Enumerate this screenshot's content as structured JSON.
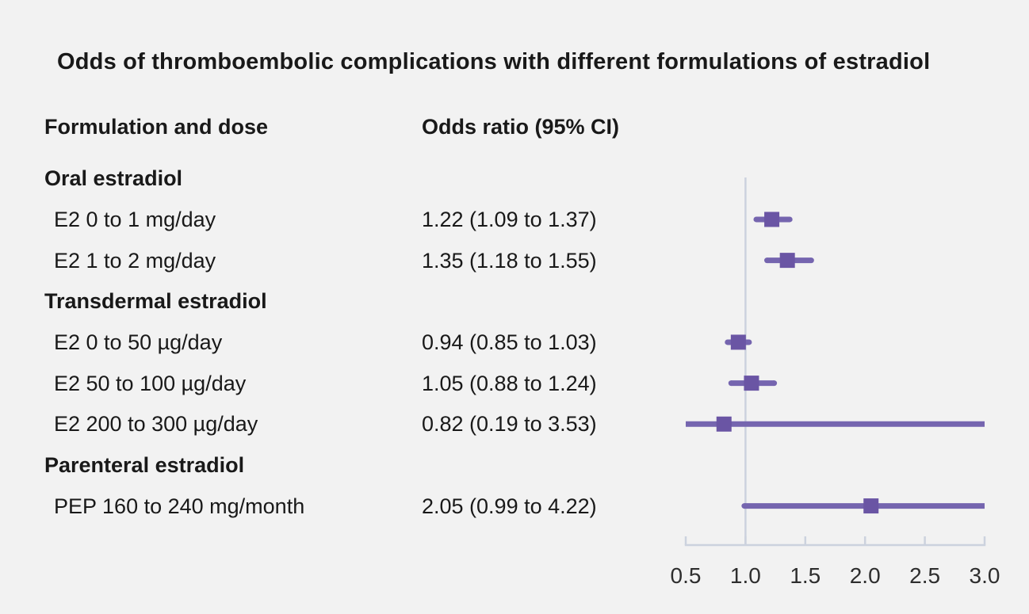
{
  "title": "Odds of thromboembolic complications with different formulations of estradiol",
  "columns": {
    "formulation": "Formulation and dose",
    "odds": "Odds ratio (95% CI)"
  },
  "colors": {
    "background": "#f2f2f2",
    "text": "#191919",
    "axis": "#ccd2de",
    "axis_label": "#2e2e2e",
    "ci_line": "#7565af",
    "marker": "#6a55a4"
  },
  "chart_data": {
    "type": "forest",
    "title": "Odds of thromboembolic complications with different formulations of estradiol",
    "xlim": [
      0.5,
      3.0
    ],
    "reference_line": 1.0,
    "grid": "off",
    "ticks": [
      {
        "value": 0.5,
        "label": "0.5"
      },
      {
        "value": 1.0,
        "label": "1.0"
      },
      {
        "value": 1.5,
        "label": "1.5"
      },
      {
        "value": 2.0,
        "label": "2.0"
      },
      {
        "value": 2.5,
        "label": "2.5"
      },
      {
        "value": 3.0,
        "label": "3.0"
      }
    ],
    "rows": [
      {
        "kind": "group",
        "label": "Oral estradiol"
      },
      {
        "kind": "item",
        "label": "E2 0 to 1 mg/day",
        "display": "1.22 (1.09 to 1.37)",
        "or": 1.22,
        "low": 1.09,
        "high": 1.37
      },
      {
        "kind": "item",
        "label": "E2 1 to 2 mg/day",
        "display": "1.35 (1.18 to 1.55)",
        "or": 1.35,
        "low": 1.18,
        "high": 1.55
      },
      {
        "kind": "group",
        "label": "Transdermal estradiol"
      },
      {
        "kind": "item",
        "label": "E2 0 to 50 µg/day",
        "display": "0.94 (0.85 to 1.03)",
        "or": 0.94,
        "low": 0.85,
        "high": 1.03
      },
      {
        "kind": "item",
        "label": "E2 50 to 100 µg/day",
        "display": "1.05 (0.88 to 1.24)",
        "or": 1.05,
        "low": 0.88,
        "high": 1.24
      },
      {
        "kind": "item",
        "label": "E2 200 to 300 µg/day",
        "display": "0.82 (0.19 to 3.53)",
        "or": 0.82,
        "low": 0.19,
        "high": 3.53
      },
      {
        "kind": "group",
        "label": "Parenteral estradiol"
      },
      {
        "kind": "item",
        "label": "PEP 160 to 240 mg/month",
        "display": "2.05 (0.99 to 4.22)",
        "or": 2.05,
        "low": 0.99,
        "high": 4.22
      }
    ]
  }
}
